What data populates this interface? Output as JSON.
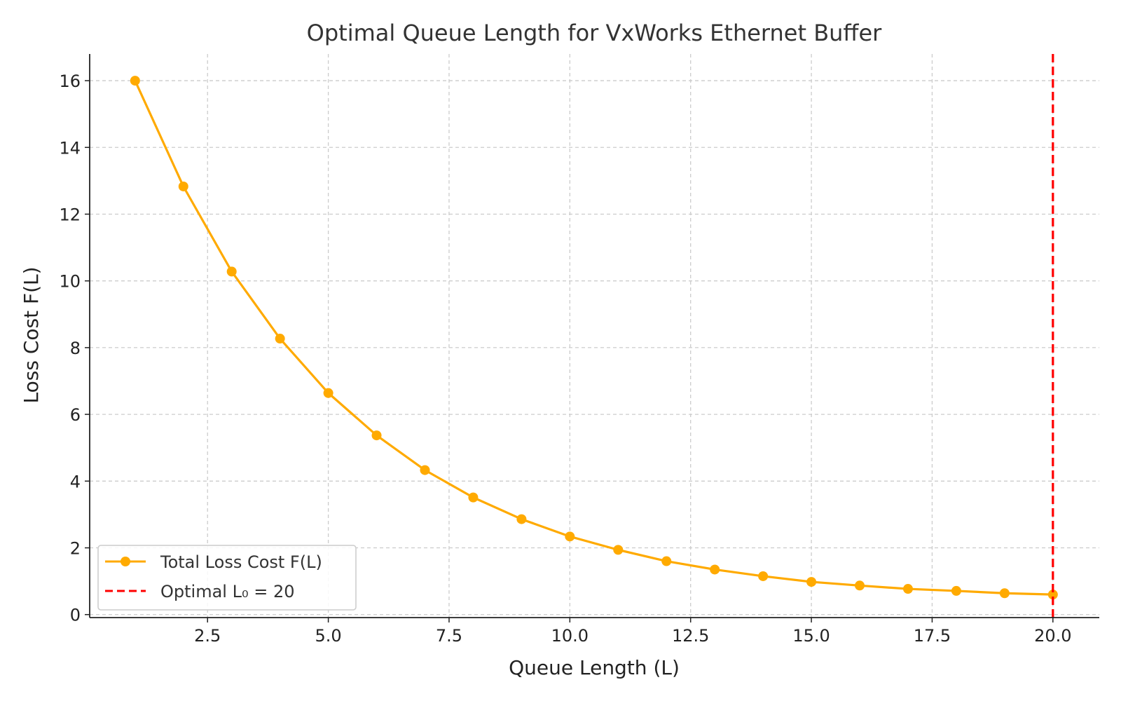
{
  "chart_data": {
    "type": "line",
    "title": "Optimal Queue Length for VxWorks Ethernet Buffer",
    "xlabel": "Queue Length (L)",
    "ylabel": "Loss Cost F(L)",
    "xlim": [
      0.06,
      20.96
    ],
    "ylim": [
      -0.09,
      16.8
    ],
    "x_ticks": [
      2.5,
      5.0,
      7.5,
      10.0,
      12.5,
      15.0,
      17.5,
      20.0
    ],
    "x_tick_labels": [
      "2.5",
      "5.0",
      "7.5",
      "10.0",
      "12.5",
      "15.0",
      "17.5",
      "20.0"
    ],
    "y_ticks": [
      0,
      2,
      4,
      6,
      8,
      10,
      12,
      14,
      16
    ],
    "y_tick_labels": [
      "0",
      "2",
      "4",
      "6",
      "8",
      "10",
      "12",
      "14",
      "16"
    ],
    "grid": true,
    "legend_placement": "lower-left",
    "series": [
      {
        "name": "Total Loss Cost F(L)",
        "color": "#FFAA00",
        "marker": "circle",
        "x": [
          1,
          2,
          3,
          4,
          5,
          6,
          7,
          8,
          9,
          10,
          11,
          12,
          13,
          14,
          15,
          16,
          17,
          18,
          19,
          20
        ],
        "values": [
          16.0,
          12.83,
          10.28,
          8.27,
          6.64,
          5.37,
          4.33,
          3.51,
          2.86,
          2.34,
          1.94,
          1.6,
          1.35,
          1.15,
          0.98,
          0.87,
          0.77,
          0.71,
          0.64,
          0.6
        ]
      }
    ],
    "vlines": [
      {
        "name": "Optimal L₀ = 20",
        "x": 20,
        "color": "#FF0000",
        "style": "dashed"
      }
    ]
  }
}
